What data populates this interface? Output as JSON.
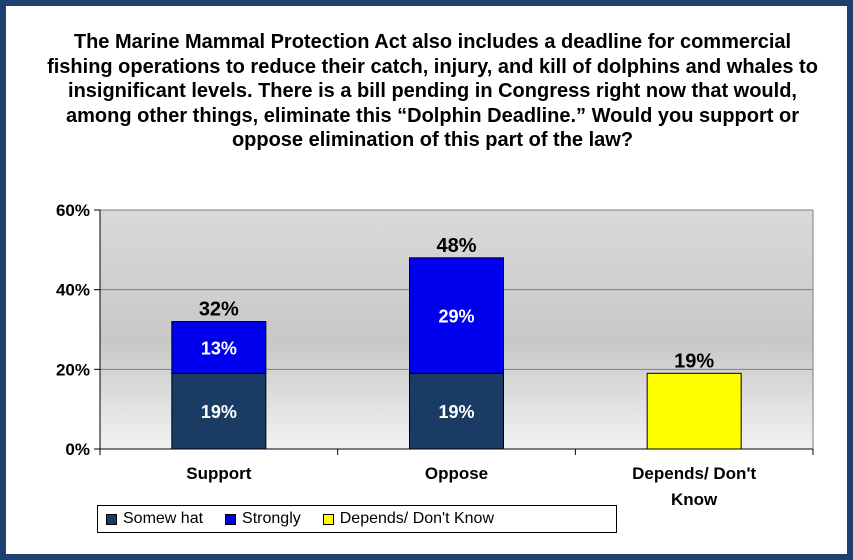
{
  "chart_data": {
    "type": "bar",
    "stacked": true,
    "title": "The Marine Mammal Protection Act also includes a deadline for commercial fishing operations to reduce their catch, injury, and kill of dolphins and whales to insignificant levels.  There is a bill pending in Congress right now that would, among other things, eliminate this “Dolphin Deadline.”  Would you support or oppose elimination of this part of the law?",
    "categories": [
      "Support",
      "Oppose",
      "Depends/ Don't Know"
    ],
    "series": [
      {
        "name": "Somew hat",
        "values": [
          19,
          19,
          0
        ],
        "color": "#1a3b63",
        "segment_labels": [
          "19%",
          "19%",
          ""
        ]
      },
      {
        "name": "Strongly",
        "values": [
          13,
          29,
          0
        ],
        "color": "#0000ee",
        "segment_labels": [
          "13%",
          "29%",
          ""
        ]
      },
      {
        "name": "Depends/ Don't Know",
        "values": [
          0,
          0,
          19
        ],
        "color": "#ffff00",
        "segment_labels": [
          "",
          "",
          ""
        ]
      }
    ],
    "totals": [
      32,
      48,
      19
    ],
    "total_labels": [
      "32%",
      "48%",
      "19%"
    ],
    "yticks": [
      0,
      20,
      40,
      60
    ],
    "ytick_labels": [
      "0%",
      "20%",
      "40%",
      "60%"
    ],
    "ylim": [
      0,
      60
    ],
    "grid": true,
    "legend_position": "bottom",
    "plot_background": "#c0c0c0"
  },
  "legend": {
    "items": [
      {
        "label": "Somew hat",
        "color": "#1a3b63"
      },
      {
        "label": "Strongly",
        "color": "#0000ee"
      },
      {
        "label": "Depends/ Don't Know",
        "color": "#ffff00"
      }
    ]
  }
}
